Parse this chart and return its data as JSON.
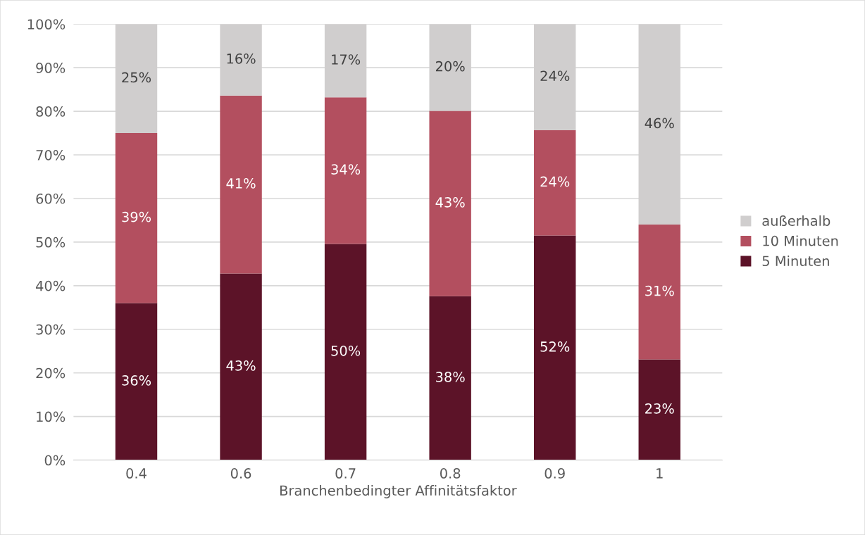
{
  "chart_data": {
    "type": "bar",
    "stacked": true,
    "xlabel": "Branchenbedingter Affinitätsfaktor",
    "categories": [
      "0.4",
      "0.6",
      "0.7",
      "0.8",
      "0.9",
      "1"
    ],
    "series": [
      {
        "name": "5 Minuten",
        "color": "#5c1328",
        "values": [
          36,
          42.8,
          49.6,
          37.6,
          51.5,
          23.1
        ],
        "value_labels": [
          "36%",
          "43%",
          "50%",
          "38%",
          "52%",
          "23%"
        ]
      },
      {
        "name": "10 Minuten",
        "color": "#b34f5f",
        "values": [
          39,
          40.8,
          33.6,
          42.5,
          24.2,
          30.9
        ],
        "value_labels": [
          "39%",
          "41%",
          "34%",
          "43%",
          "24%",
          "31%"
        ]
      },
      {
        "name": "außerhalb",
        "color": "#d0cece",
        "values": [
          25,
          16.4,
          16.8,
          19.9,
          24.3,
          46.0
        ],
        "value_labels": [
          "25%",
          "16%",
          "17%",
          "20%",
          "24%",
          "46%"
        ]
      }
    ],
    "ylim": [
      0,
      100
    ],
    "yticks": [
      {
        "value": 0,
        "label": "0%"
      },
      {
        "value": 10,
        "label": "10%"
      },
      {
        "value": 20,
        "label": "20%"
      },
      {
        "value": 30,
        "label": "30%"
      },
      {
        "value": 40,
        "label": "40%"
      },
      {
        "value": 50,
        "label": "50%"
      },
      {
        "value": 60,
        "label": "60%"
      },
      {
        "value": 70,
        "label": "70%"
      },
      {
        "value": 80,
        "label": "80%"
      },
      {
        "value": 90,
        "label": "90%"
      },
      {
        "value": 100,
        "label": "100%"
      }
    ],
    "grid": "y",
    "legend": "right"
  }
}
